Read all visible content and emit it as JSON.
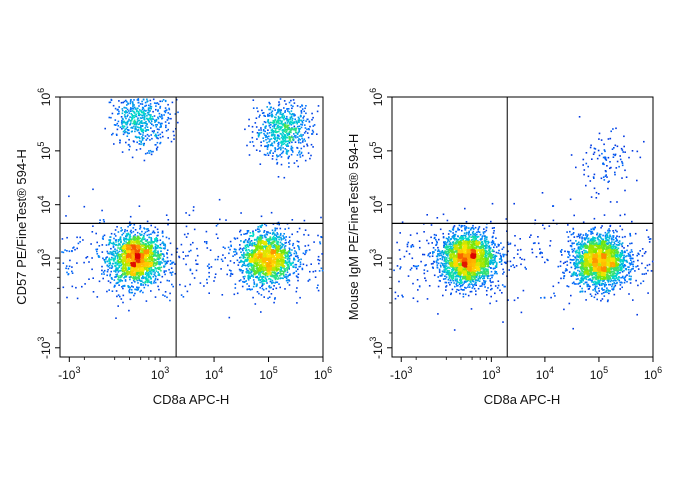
{
  "chart_data": [
    {
      "type": "scatter",
      "subtype": "flow-cytometry-density-plot",
      "xlabel": "CD8a APC-H",
      "ylabel": "CD57 PE/FineTest® 594-H",
      "x_scale": "biexponential",
      "y_scale": "biexponential",
      "xlim": [
        -1500,
        1000000
      ],
      "ylim": [
        -1500,
        1000000
      ],
      "x_ticks": [
        {
          "base": "-10",
          "exp": "3",
          "value": -1000
        },
        {
          "base": "10",
          "exp": "3",
          "value": 1000
        },
        {
          "base": "10",
          "exp": "4",
          "value": 10000
        },
        {
          "base": "10",
          "exp": "5",
          "value": 100000
        },
        {
          "base": "10",
          "exp": "6",
          "value": 1000000
        }
      ],
      "y_ticks": [
        {
          "base": "-10",
          "exp": "3",
          "value": -1000
        },
        {
          "base": "10",
          "exp": "3",
          "value": 1000
        },
        {
          "base": "10",
          "exp": "4",
          "value": 10000
        },
        {
          "base": "10",
          "exp": "5",
          "value": 100000
        },
        {
          "base": "10",
          "exp": "6",
          "value": 1000000
        }
      ],
      "gate_x": 2000,
      "gate_y": 4500,
      "populations": [
        {
          "x": 300,
          "y": 1000,
          "weight": 0.35,
          "spread": 0.55
        },
        {
          "x": 90000,
          "y": 1000,
          "weight": 0.3,
          "spread": 0.55
        },
        {
          "x": 400,
          "y": 400000,
          "weight": 0.1,
          "spread": 0.6
        },
        {
          "x": 180000,
          "y": 250000,
          "weight": 0.12,
          "spread": 0.6
        }
      ],
      "grid": false,
      "legend": "none"
    },
    {
      "type": "scatter",
      "subtype": "flow-cytometry-density-plot",
      "xlabel": "CD8a APC-H",
      "ylabel": "Mouse IgM PE/FineTest® 594-H",
      "x_scale": "biexponential",
      "y_scale": "biexponential",
      "xlim": [
        -1500,
        1000000
      ],
      "ylim": [
        -1500,
        1000000
      ],
      "x_ticks": [
        {
          "base": "-10",
          "exp": "3",
          "value": -1000
        },
        {
          "base": "10",
          "exp": "3",
          "value": 1000
        },
        {
          "base": "10",
          "exp": "4",
          "value": 10000
        },
        {
          "base": "10",
          "exp": "5",
          "value": 100000
        },
        {
          "base": "10",
          "exp": "6",
          "value": 1000000
        }
      ],
      "y_ticks": [
        {
          "base": "-10",
          "exp": "3",
          "value": -1000
        },
        {
          "base": "10",
          "exp": "3",
          "value": 1000
        },
        {
          "base": "10",
          "exp": "4",
          "value": 10000
        },
        {
          "base": "10",
          "exp": "5",
          "value": 100000
        },
        {
          "base": "10",
          "exp": "6",
          "value": 1000000
        }
      ],
      "gate_x": 2000,
      "gate_y": 4500,
      "populations": [
        {
          "x": 300,
          "y": 1000,
          "weight": 0.45,
          "spread": 0.55
        },
        {
          "x": 100000,
          "y": 900,
          "weight": 0.4,
          "spread": 0.55
        },
        {
          "x": 120000,
          "y": 60000,
          "weight": 0.02,
          "spread": 0.7
        }
      ],
      "grid": false,
      "legend": "none"
    }
  ]
}
